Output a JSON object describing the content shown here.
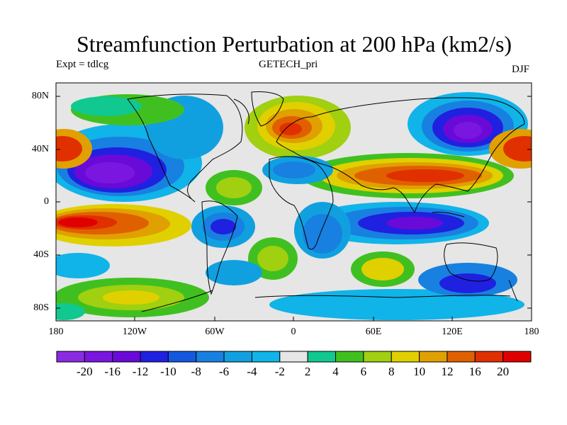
{
  "title": "Streamfunction Perturbation at 200 hPa (km2/s)",
  "subtitle_left": "Expt = tdlcg",
  "subtitle_center": "GETECH_pri",
  "subtitle_right": "DJF",
  "lat_labels": [
    "80N",
    "40N",
    "0",
    "40S",
    "80S"
  ],
  "lon_labels": [
    "180",
    "120W",
    "60W",
    "0",
    "60E",
    "120E",
    "180"
  ],
  "colorbar": {
    "labels": [
      "-20",
      "-16",
      "-12",
      "-10",
      "-8",
      "-6",
      "-4",
      "-2",
      "2",
      "4",
      "6",
      "8",
      "10",
      "12",
      "16",
      "20"
    ],
    "colors": [
      "#8a2be2",
      "#7a16e0",
      "#6a0ad8",
      "#2020e0",
      "#1458e0",
      "#1880e0",
      "#10a0e0",
      "#10b4e8",
      "#e6e6e6",
      "#10c890",
      "#40c020",
      "#a0d010",
      "#e0d000",
      "#e0a000",
      "#e06000",
      "#e03000",
      "#e00000"
    ]
  },
  "chart_data": {
    "type": "contour-map",
    "title": "Streamfunction Perturbation at 200 hPa (km2/s)",
    "units": "km2/s",
    "season": "DJF",
    "experiment": "tdlcg",
    "dataset": "GETECH_pri",
    "lon_range": [
      -180,
      180
    ],
    "lat_range": [
      -90,
      90
    ],
    "contour_levels": [
      -20,
      -16,
      -12,
      -10,
      -8,
      -6,
      -4,
      -2,
      2,
      4,
      6,
      8,
      10,
      12,
      16,
      20
    ],
    "features": [
      {
        "lon": -125,
        "lat": 20,
        "value": -18
      },
      {
        "lon": 122,
        "lat": 45,
        "value": -18
      },
      {
        "lon": 98,
        "lat": -22,
        "value": -14
      },
      {
        "lon": -160,
        "lat": -10,
        "value": 20
      },
      {
        "lon": 175,
        "lat": 45,
        "value": 18
      },
      {
        "lon": 60,
        "lat": 22,
        "value": 18
      },
      {
        "lon": 115,
        "lat": 22,
        "value": 20
      },
      {
        "lon": 5,
        "lat": 58,
        "value": 16
      },
      {
        "lon": -35,
        "lat": 5,
        "value": 8
      },
      {
        "lon": 78,
        "lat": -52,
        "value": 10
      },
      {
        "lon": -48,
        "lat": -20,
        "value": -12
      },
      {
        "lon": 35,
        "lat": -40,
        "value": -10
      },
      {
        "lon": -115,
        "lat": -75,
        "value": 10
      }
    ]
  }
}
